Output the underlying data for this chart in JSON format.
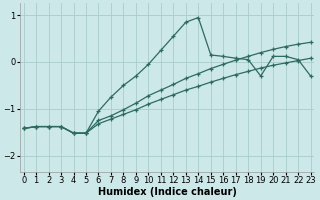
{
  "xlabel": "Humidex (Indice chaleur)",
  "background_color": "#cce8e8",
  "grid_color": "#aacccc",
  "line_color": "#2e6b5e",
  "xlim": [
    -0.3,
    23.3
  ],
  "ylim": [
    -2.35,
    1.25
  ],
  "yticks": [
    1,
    0,
    -1,
    -2
  ],
  "xticks": [
    0,
    1,
    2,
    3,
    4,
    5,
    6,
    7,
    8,
    9,
    10,
    11,
    12,
    13,
    14,
    15,
    16,
    17,
    18,
    19,
    20,
    21,
    22,
    23
  ],
  "s1_x": [
    0,
    1,
    2,
    3,
    4,
    5,
    6,
    7,
    8,
    9,
    10,
    11,
    12,
    13,
    14,
    15,
    16,
    17,
    18,
    19,
    20,
    21,
    22,
    23
  ],
  "s1_y": [
    -1.42,
    -1.38,
    -1.38,
    -1.38,
    -1.52,
    -1.52,
    -1.05,
    -0.75,
    -0.5,
    -0.3,
    -0.05,
    0.25,
    0.55,
    0.85,
    0.95,
    0.15,
    0.12,
    0.08,
    0.05,
    -0.3,
    0.12,
    0.12,
    0.05,
    -0.3
  ],
  "s2_x": [
    0,
    1,
    2,
    3,
    4,
    5,
    6,
    7,
    8,
    9,
    10,
    11,
    12,
    13,
    14,
    15,
    16,
    17,
    18,
    19,
    20,
    21,
    22,
    23
  ],
  "s2_y": [
    -1.42,
    -1.38,
    -1.38,
    -1.38,
    -1.52,
    -1.52,
    -1.25,
    -1.15,
    -1.02,
    -0.88,
    -0.72,
    -0.6,
    -0.48,
    -0.35,
    -0.25,
    -0.14,
    -0.05,
    0.04,
    0.12,
    0.2,
    0.27,
    0.33,
    0.38,
    0.42
  ],
  "s3_x": [
    0,
    1,
    2,
    3,
    4,
    5,
    6,
    7,
    8,
    9,
    10,
    11,
    12,
    13,
    14,
    15,
    16,
    17,
    18,
    19,
    20,
    21,
    22,
    23
  ],
  "s3_y": [
    -1.42,
    -1.38,
    -1.38,
    -1.38,
    -1.52,
    -1.52,
    -1.32,
    -1.22,
    -1.12,
    -1.02,
    -0.9,
    -0.8,
    -0.7,
    -0.6,
    -0.52,
    -0.43,
    -0.35,
    -0.27,
    -0.2,
    -0.13,
    -0.07,
    -0.02,
    0.03,
    0.08
  ]
}
